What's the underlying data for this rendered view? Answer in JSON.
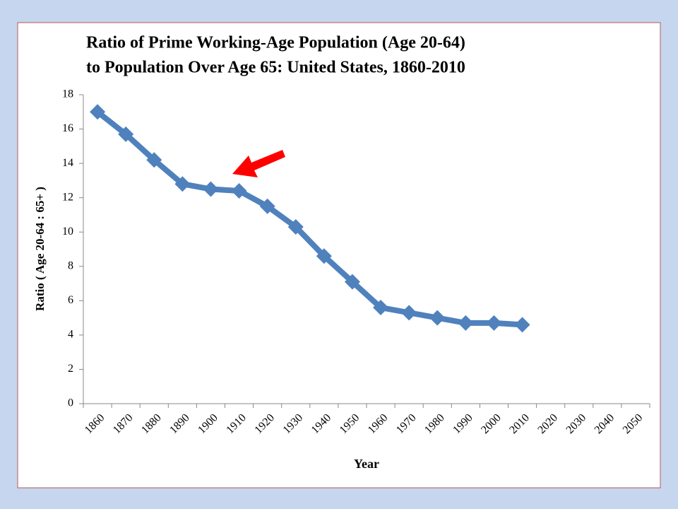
{
  "chart_data": {
    "type": "line",
    "title": [
      "Ratio of Prime Working-Age Population (Age 20-64)",
      "to Population Over Age 65: United States, 1860-2010"
    ],
    "x_label": "Year",
    "y_label": "Ratio ( Age 20-64 : 65+ )",
    "categories": [
      "1860",
      "1870",
      "1880",
      "1890",
      "1900",
      "1910",
      "1920",
      "1930",
      "1940",
      "1950",
      "1960",
      "1970",
      "1980",
      "1990",
      "2000",
      "2010",
      "2020",
      "2030",
      "2040",
      "2050"
    ],
    "series": [
      {
        "name": "Ratio",
        "color": "#4f81bd",
        "values": [
          17.0,
          15.7,
          14.2,
          12.8,
          12.5,
          12.4,
          11.5,
          10.3,
          8.6,
          7.1,
          5.6,
          5.3,
          5.0,
          4.7,
          4.7,
          4.6,
          null,
          null,
          null,
          null
        ]
      }
    ],
    "ylim": [
      0,
      18
    ],
    "yticks": [
      0,
      2,
      4,
      6,
      8,
      10,
      12,
      14,
      16,
      18
    ],
    "grid": false
  }
}
